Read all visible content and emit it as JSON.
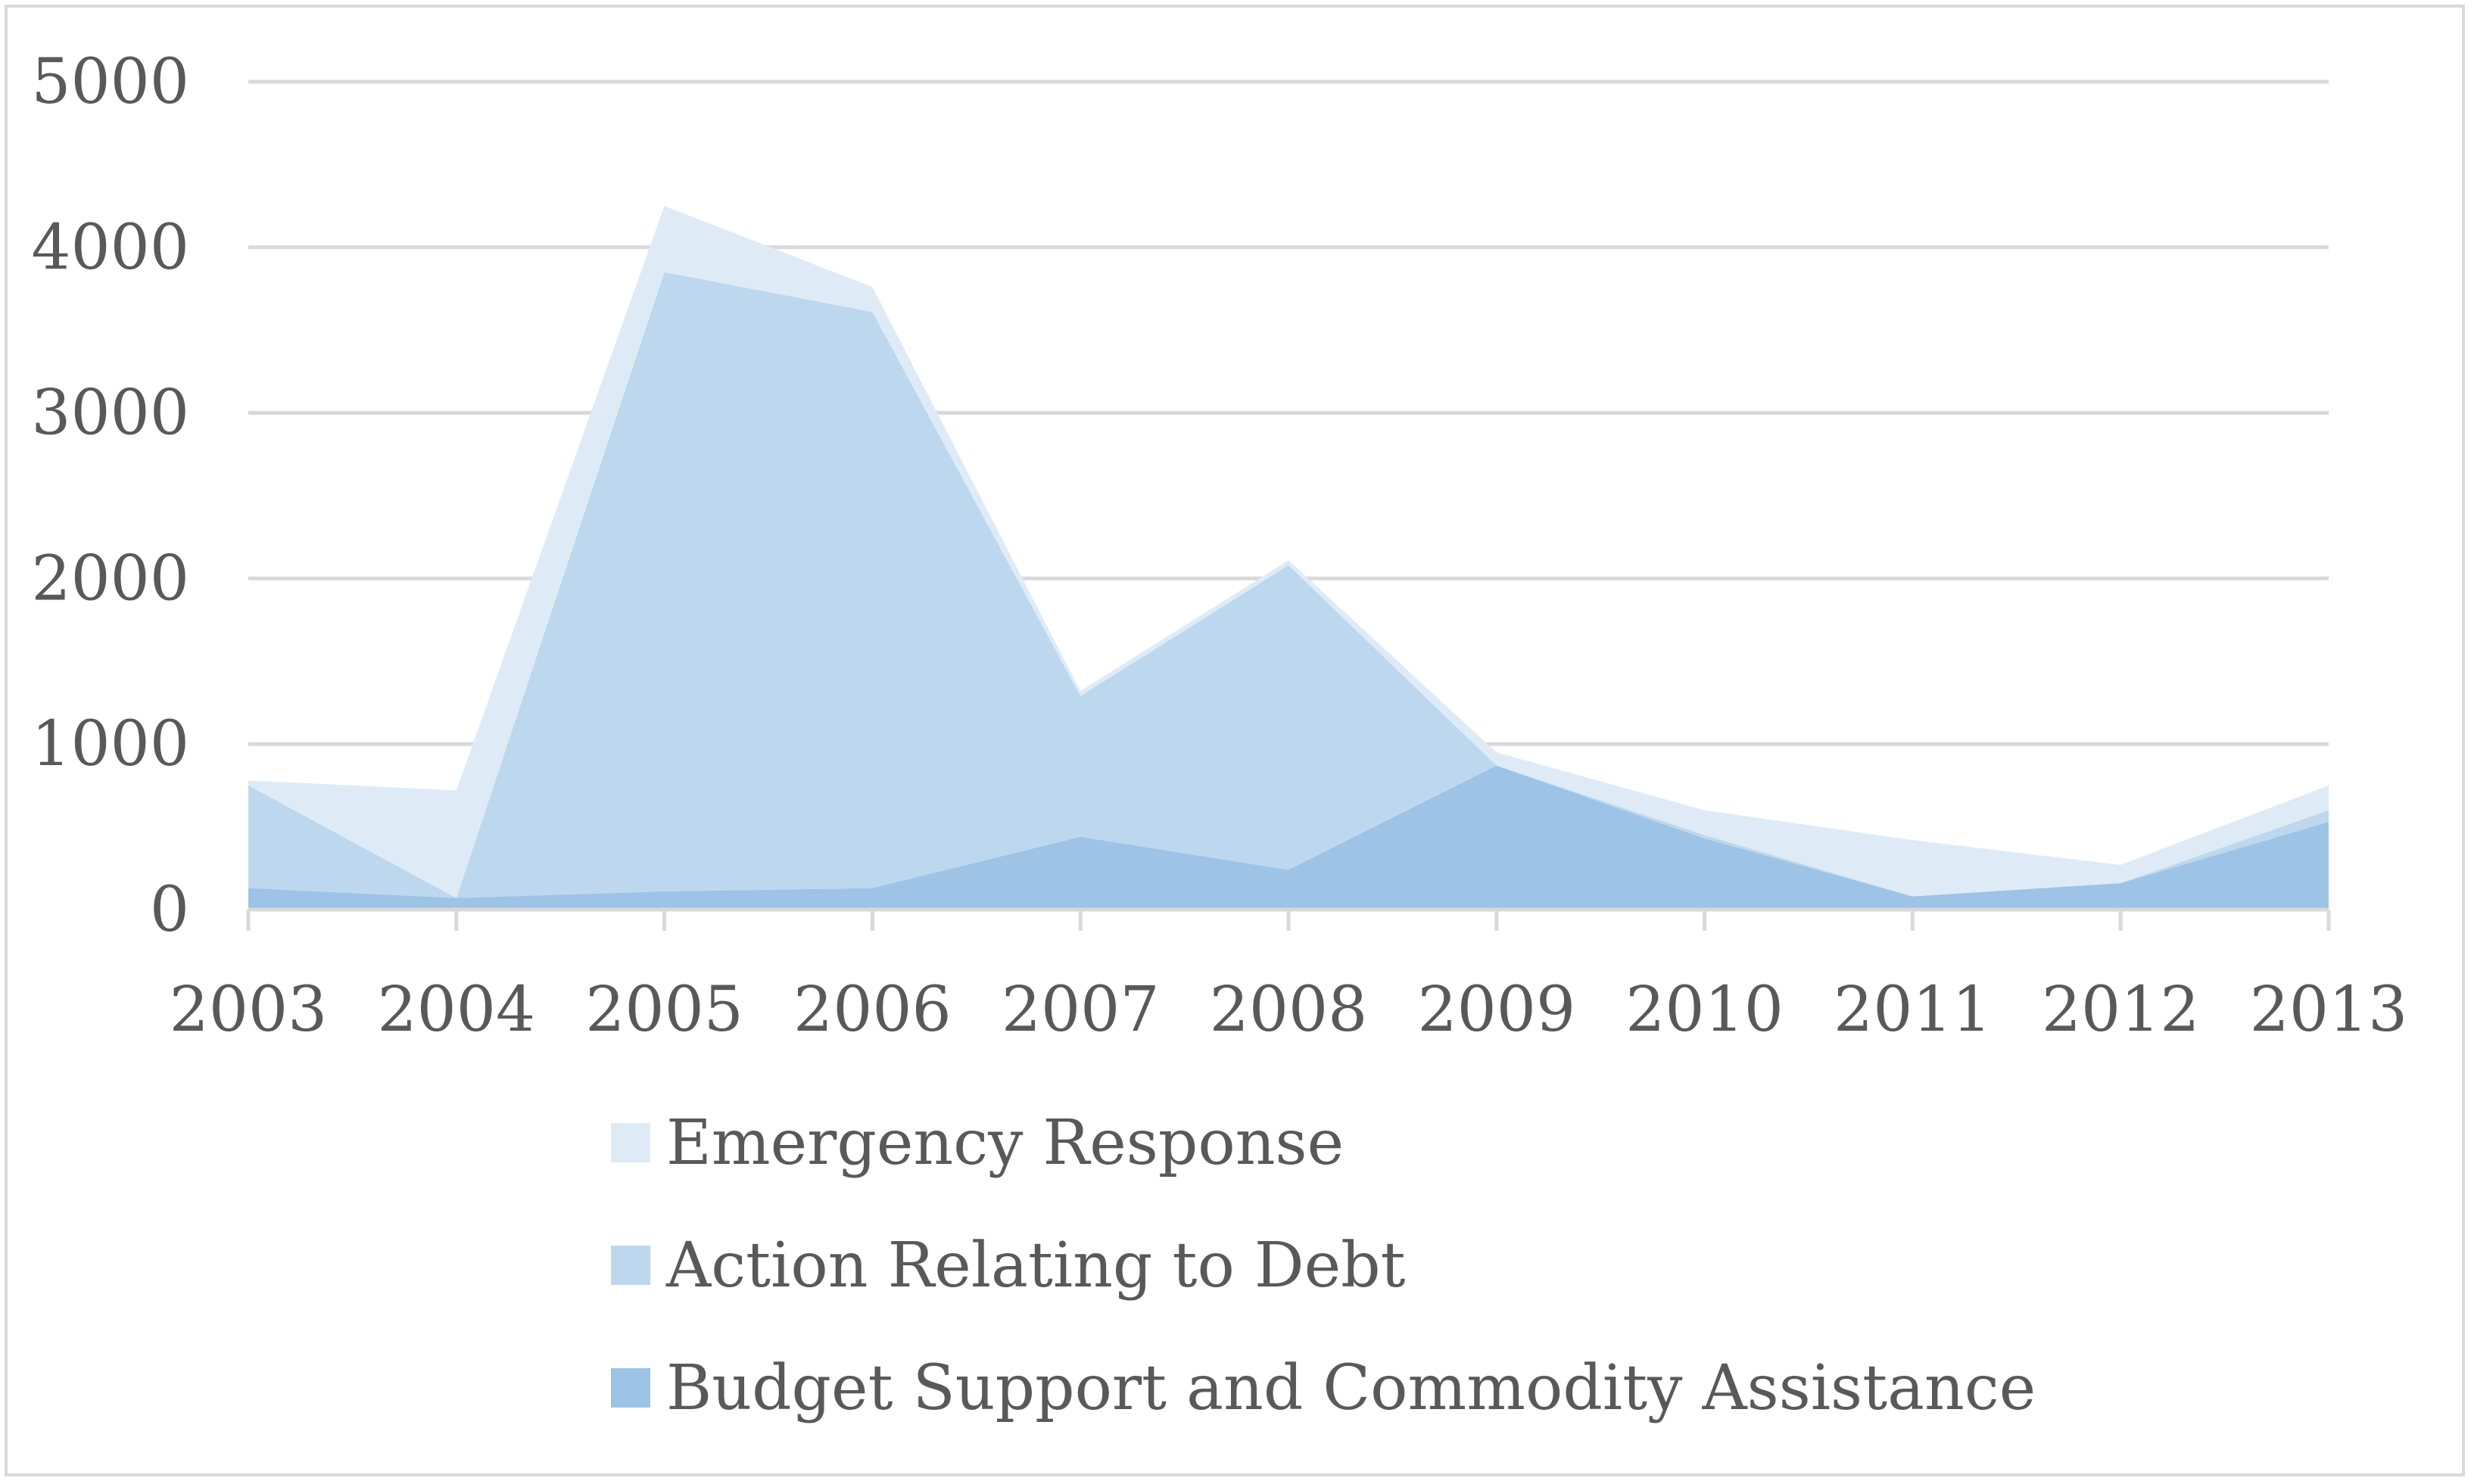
{
  "chart_data": {
    "type": "area",
    "stacked": true,
    "title": "",
    "xlabel": "",
    "ylabel": "",
    "categories": [
      "2003",
      "2004",
      "2005",
      "2006",
      "2007",
      "2008",
      "2009",
      "2010",
      "2011",
      "2012",
      "2013"
    ],
    "ylim": [
      0,
      5000
    ],
    "yticks": [
      "0",
      "1000",
      "2000",
      "3000",
      "4000",
      "5000"
    ],
    "grid": true,
    "legend_position": "bottom",
    "series": [
      {
        "name": "Budget Support and Commodity Assistance",
        "color": "#9dc3e6",
        "values": [
          130,
          70,
          110,
          130,
          440,
          240,
          870,
          430,
          80,
          160,
          530
        ]
      },
      {
        "name": "Action Relating to Debt",
        "color": "#bdd7ee",
        "values": [
          620,
          0,
          3740,
          3480,
          850,
          1840,
          0,
          20,
          0,
          0,
          70
        ]
      },
      {
        "name": "Emergency Response",
        "color": "#deebf7",
        "values": [
          30,
          650,
          400,
          150,
          30,
          30,
          80,
          150,
          340,
          110,
          150
        ]
      }
    ],
    "legend_order": [
      "Emergency Response",
      "Action Relating to Debt",
      "Budget Support and Commodity Assistance"
    ]
  }
}
